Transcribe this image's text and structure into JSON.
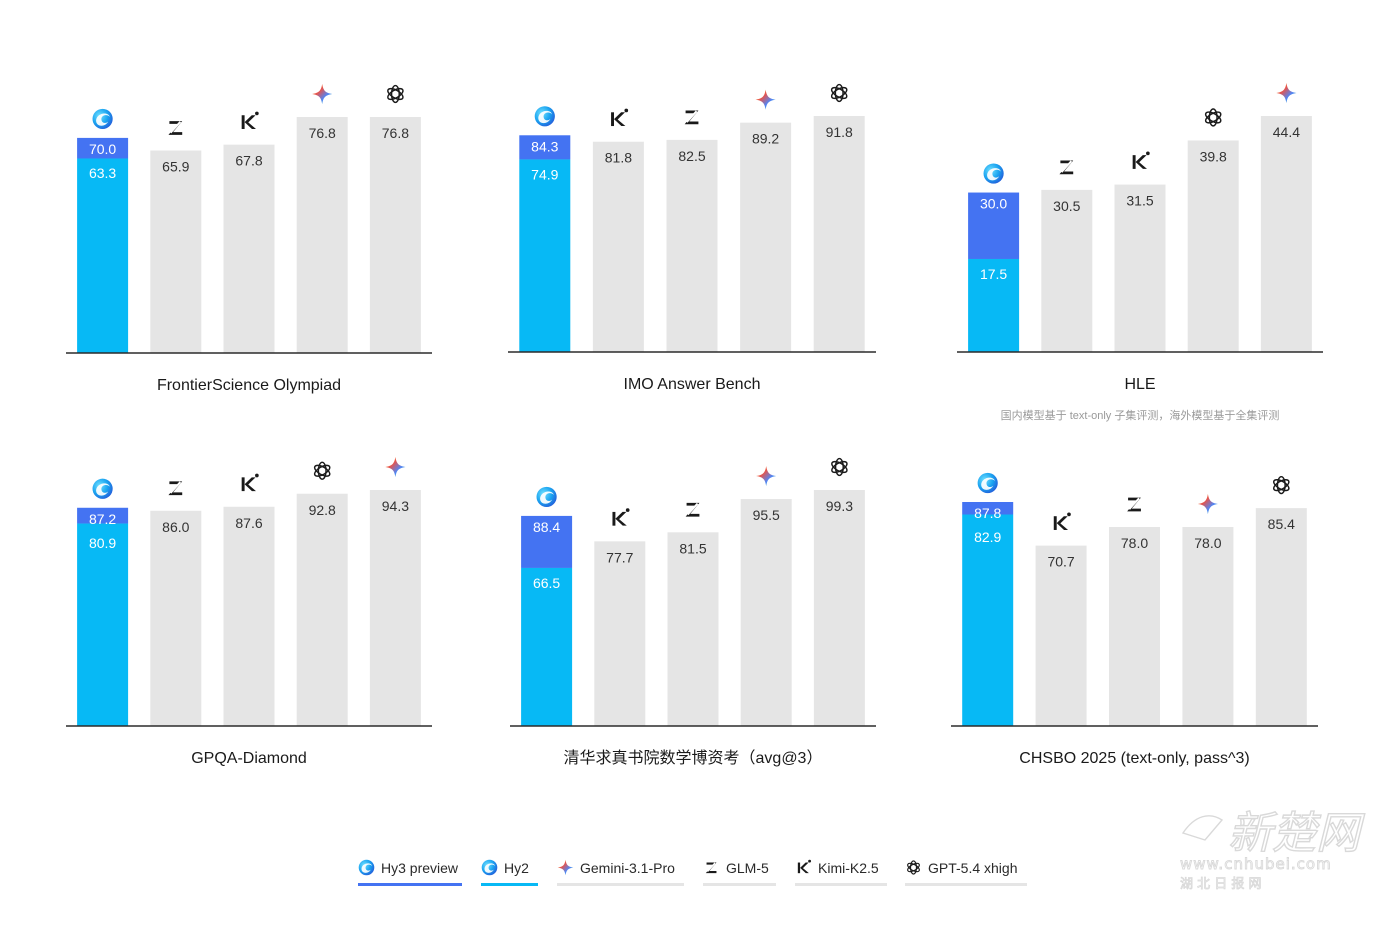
{
  "colors": {
    "hy3": "#4473f2",
    "hy2": "#07b9f5",
    "other": "#e5e5e5",
    "baseline": "#2b2b2b"
  },
  "models": {
    "hy3": {
      "label": "Hy3 preview",
      "icon": "hunyuan-logo-icon"
    },
    "hy2": {
      "label": "Hy2",
      "icon": "hunyuan-logo-icon"
    },
    "gemini": {
      "label": "Gemini-3.1-Pro",
      "icon": "gemini-sparkle-icon"
    },
    "glm": {
      "label": "GLM-5",
      "icon": "zhipu-z-icon"
    },
    "kimi": {
      "label": "Kimi-K2.5",
      "icon": "kimi-k-icon"
    },
    "gpt": {
      "label": "GPT-5.4 xhigh",
      "icon": "openai-knot-icon"
    }
  },
  "legend": [
    "hy3",
    "hy2",
    "gemini",
    "glm",
    "kimi",
    "gpt"
  ],
  "chart_data": [
    {
      "type": "bar",
      "title": "FrontierScience Olympiad",
      "note": "",
      "categories": [
        "Hy3 preview / Hy2",
        "GLM-5",
        "Kimi-K2.5",
        "Gemini-3.1-Pro",
        "GPT-5.4 xhigh"
      ],
      "order": [
        "hy",
        "glm",
        "kimi",
        "gemini",
        "gpt"
      ],
      "hy3": 70.0,
      "hy2": 63.3,
      "values": [
        70.0,
        65.9,
        67.8,
        76.8,
        76.8
      ],
      "labels": [
        "70.0",
        "65.9",
        "67.8",
        "76.8",
        "76.8"
      ],
      "hy2_label": "63.3"
    },
    {
      "type": "bar",
      "title": "IMO Answer Bench",
      "note": "",
      "categories": [
        "Hy3 preview / Hy2",
        "Kimi-K2.5",
        "GLM-5",
        "Gemini-3.1-Pro",
        "GPT-5.4 xhigh"
      ],
      "order": [
        "hy",
        "kimi",
        "glm",
        "gemini",
        "gpt"
      ],
      "hy3": 84.3,
      "hy2": 74.9,
      "values": [
        84.3,
        81.8,
        82.5,
        89.2,
        91.8
      ],
      "labels": [
        "84.3",
        "81.8",
        "82.5",
        "89.2",
        "91.8"
      ],
      "hy2_label": "74.9"
    },
    {
      "type": "bar",
      "title": "HLE",
      "note": "国内模型基于 text-only 子集评测，海外模型基于全集评测",
      "categories": [
        "Hy3 preview / Hy2",
        "GLM-5",
        "Kimi-K2.5",
        "GPT-5.4 xhigh",
        "Gemini-3.1-Pro"
      ],
      "order": [
        "hy",
        "glm",
        "kimi",
        "gpt",
        "gemini"
      ],
      "hy3": 30.0,
      "hy2": 17.5,
      "values": [
        30.0,
        30.5,
        31.5,
        39.8,
        44.4
      ],
      "labels": [
        "30.0",
        "30.5",
        "31.5",
        "39.8",
        "44.4"
      ],
      "hy2_label": "17.5"
    },
    {
      "type": "bar",
      "title": "GPQA-Diamond",
      "note": "",
      "categories": [
        "Hy3 preview / Hy2",
        "GLM-5",
        "Kimi-K2.5",
        "GPT-5.4 xhigh",
        "Gemini-3.1-Pro"
      ],
      "order": [
        "hy",
        "glm",
        "kimi",
        "gpt",
        "gemini"
      ],
      "hy3": 87.2,
      "hy2": 80.9,
      "values": [
        87.2,
        86.0,
        87.6,
        92.8,
        94.3
      ],
      "labels": [
        "87.2",
        "86.0",
        "87.6",
        "92.8",
        "94.3"
      ],
      "hy2_label": "80.9"
    },
    {
      "type": "bar",
      "title": "清华求真书院数学博资考（avg@3）",
      "note": "",
      "categories": [
        "Hy3 preview / Hy2",
        "Kimi-K2.5",
        "GLM-5",
        "Gemini-3.1-Pro",
        "GPT-5.4 xhigh"
      ],
      "order": [
        "hy",
        "kimi",
        "glm",
        "gemini",
        "gpt"
      ],
      "hy3": 88.4,
      "hy2": 66.5,
      "values": [
        88.4,
        77.7,
        81.5,
        95.5,
        99.3
      ],
      "labels": [
        "88.4",
        "77.7",
        "81.5",
        "95.5",
        "99.3"
      ],
      "hy2_label": "66.5"
    },
    {
      "type": "bar",
      "title": "CHSBO 2025 (text-only, pass^3)",
      "note": "",
      "categories": [
        "Hy3 preview / Hy2",
        "Kimi-K2.5",
        "GLM-5",
        "Gemini-3.1-Pro",
        "GPT-5.4 xhigh"
      ],
      "order": [
        "hy",
        "kimi",
        "glm",
        "gemini",
        "gpt"
      ],
      "hy3": 87.8,
      "hy2": 82.9,
      "values": [
        87.8,
        70.7,
        78.0,
        78.0,
        85.4
      ],
      "labels": [
        "87.8",
        "70.7",
        "78.0",
        "78.0",
        "85.4"
      ],
      "hy2_label": "82.9"
    }
  ],
  "watermark": {
    "brand": "新楚网",
    "url": "www.cnhubei.com",
    "sub": "湖 北 日 报 网"
  }
}
